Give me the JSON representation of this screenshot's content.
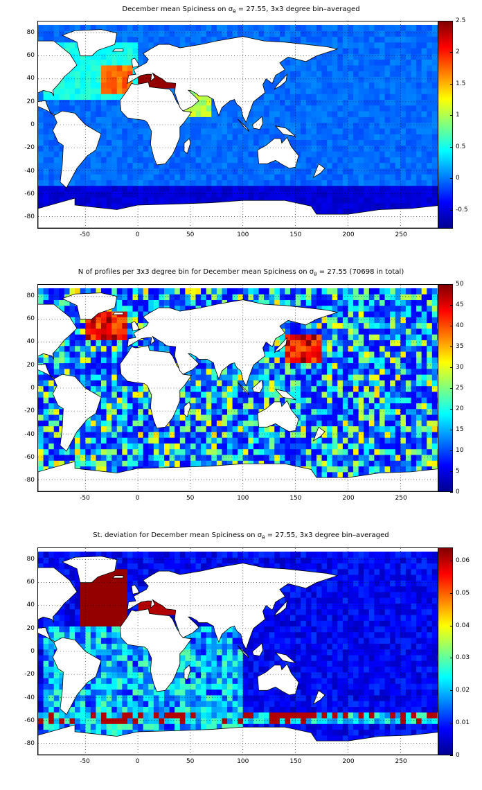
{
  "panels": [
    {
      "title_prefix": "December mean Spiciness on σ",
      "title_sub": "θ",
      "title_suffix": " = 27.55, 3x3 degree bin–averaged",
      "colorbar_ticks": [
        "2.5",
        "2",
        "1.5",
        "1",
        "0.5",
        "0",
        "-0.5"
      ]
    },
    {
      "title_prefix": "N of profiles per 3x3 degree bin for December mean Spiciness on σ",
      "title_sub": "θ",
      "title_suffix": " = 27.55 (70698 in total)",
      "colorbar_ticks": [
        "50",
        "45",
        "40",
        "35",
        "30",
        "25",
        "20",
        "15",
        "10",
        "5",
        "0"
      ]
    },
    {
      "title_prefix": "St. deviation for December mean Spiciness on σ",
      "title_sub": "θ",
      "title_suffix": " = 27.55, 3x3 degree bin–averaged",
      "colorbar_ticks": [
        "0.06",
        "0.05",
        "0.04",
        "0.03",
        "0.02",
        "0.01",
        "0"
      ]
    }
  ],
  "x_ticks": [
    "-50",
    "0",
    "50",
    "100",
    "150",
    "200",
    "250"
  ],
  "y_ticks": [
    "80",
    "60",
    "40",
    "20",
    "0",
    "-20",
    "-40",
    "-60",
    "-80"
  ],
  "chart_data": [
    {
      "type": "heatmap",
      "title": "December mean Spiciness on σθ = 27.55, 3x3 degree bin–averaged",
      "x_range": [
        -95,
        290
      ],
      "y_range": [
        -90,
        90
      ],
      "x_ticks": [
        -50,
        0,
        50,
        100,
        150,
        200,
        250
      ],
      "y_ticks": [
        80,
        60,
        40,
        20,
        0,
        -20,
        -40,
        -60,
        -80
      ],
      "colorbar_range": [
        -0.8,
        2.5
      ],
      "colorbar_ticks": [
        2.5,
        2,
        1.5,
        1,
        0.5,
        0,
        -0.5
      ],
      "colormap": "jet",
      "grid": "dotted"
    },
    {
      "type": "heatmap",
      "title": "N of profiles per 3x3 degree bin for December mean Spiciness on σθ = 27.55 (70698 in total)",
      "x_range": [
        -95,
        290
      ],
      "y_range": [
        -90,
        90
      ],
      "x_ticks": [
        -50,
        0,
        50,
        100,
        150,
        200,
        250
      ],
      "y_ticks": [
        80,
        60,
        40,
        20,
        0,
        -20,
        -40,
        -60,
        -80
      ],
      "colorbar_range": [
        0,
        50
      ],
      "colorbar_ticks": [
        50,
        45,
        40,
        35,
        30,
        25,
        20,
        15,
        10,
        5,
        0
      ],
      "colormap": "jet",
      "grid": "dotted"
    },
    {
      "type": "heatmap",
      "title": "St. deviation for December mean Spiciness on σθ = 27.55, 3x3 degree bin–averaged",
      "x_range": [
        -95,
        290
      ],
      "y_range": [
        -90,
        90
      ],
      "x_ticks": [
        -50,
        0,
        50,
        100,
        150,
        200,
        250
      ],
      "y_ticks": [
        80,
        60,
        40,
        20,
        0,
        -20,
        -40,
        -60,
        -80
      ],
      "colorbar_range": [
        0,
        0.064
      ],
      "colorbar_ticks": [
        0.06,
        0.05,
        0.04,
        0.03,
        0.02,
        0.01,
        0
      ],
      "colormap": "jet",
      "grid": "dotted"
    }
  ],
  "colors": {
    "ocean_low": "#1a4cff",
    "ocean_mid": "#2aa8ff",
    "ocean_warm": "#ffea00",
    "high": "#8b0000",
    "land": "#ffffff",
    "coast": "#000000"
  }
}
